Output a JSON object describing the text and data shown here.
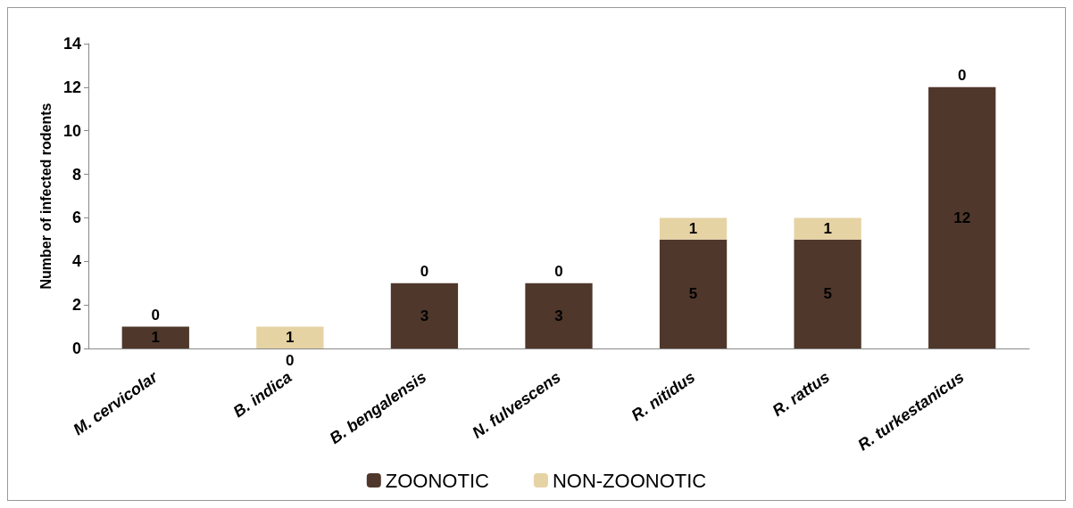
{
  "chart_data": {
    "type": "bar",
    "ylabel": "Number of infected rodents",
    "categories": [
      "M. cervicolar",
      "B. indica",
      "B. bengalensis",
      "N. fulvescens",
      "R. nitidus",
      "R. rattus",
      "R. turkestanicus"
    ],
    "series": [
      {
        "name": "ZOONOTIC",
        "color": "#4f372b",
        "values": [
          1,
          0,
          3,
          3,
          5,
          5,
          12
        ]
      },
      {
        "name": "NON-ZOONOTIC",
        "color": "#e6d3a4",
        "values": [
          0,
          1,
          0,
          0,
          1,
          1,
          0
        ]
      }
    ],
    "stacked": true,
    "data_labels": true,
    "ylim": [
      0,
      14
    ],
    "yticks": [
      0,
      2,
      4,
      6,
      8,
      10,
      12,
      14
    ],
    "grid": false,
    "legend": "bottom"
  }
}
